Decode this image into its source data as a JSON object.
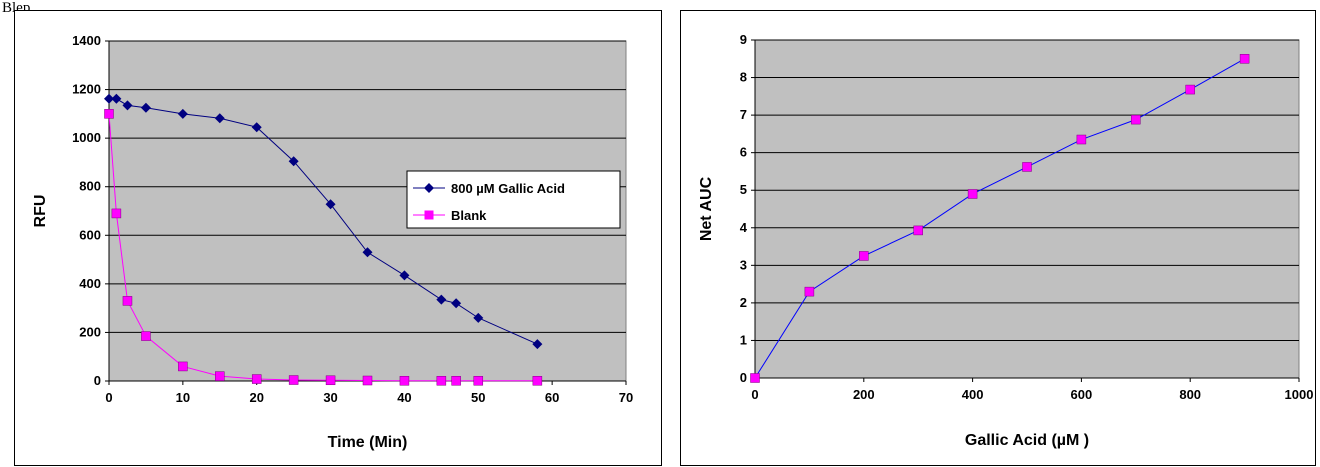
{
  "caption": "Blep",
  "chart_data": [
    {
      "type": "line",
      "title": "",
      "xlabel": "Time (Min)",
      "ylabel": "RFU",
      "xlim": [
        0,
        70
      ],
      "ylim": [
        0,
        1400
      ],
      "xticks": [
        0,
        10,
        20,
        30,
        40,
        50,
        60,
        70
      ],
      "yticks": [
        0,
        200,
        400,
        600,
        800,
        1000,
        1200,
        1400
      ],
      "grid": true,
      "legend": "right",
      "plot_background": "#c0c0c0",
      "series": [
        {
          "name": "800 µM Gallic Acid",
          "color": "#000080",
          "marker": "diamond",
          "x": [
            0,
            1,
            2.5,
            5,
            10,
            15,
            20,
            25,
            30,
            35,
            40,
            45,
            47,
            50,
            58
          ],
          "y": [
            1162,
            1162,
            1135,
            1125,
            1100,
            1082,
            1045,
            905,
            728,
            530,
            435,
            335,
            320,
            260,
            152
          ]
        },
        {
          "name": "Blank",
          "color": "#ff00ff",
          "marker": "square",
          "x": [
            0,
            1,
            2.5,
            5,
            10,
            15,
            20,
            25,
            30,
            35,
            40,
            45,
            47,
            50,
            58
          ],
          "y": [
            1100,
            690,
            330,
            185,
            60,
            20,
            8,
            4,
            3,
            2,
            1,
            1,
            1,
            1,
            1
          ]
        }
      ]
    },
    {
      "type": "line",
      "title": "",
      "xlabel": "Gallic Acid (µM )",
      "ylabel": "Net AUC",
      "xlim": [
        0,
        1000
      ],
      "ylim": [
        0,
        9
      ],
      "xticks": [
        0,
        200,
        400,
        600,
        800,
        1000
      ],
      "yticks": [
        0,
        1,
        2,
        3,
        4,
        5,
        6,
        7,
        8,
        9
      ],
      "grid": true,
      "legend": "none",
      "plot_background": "#c0c0c0",
      "series": [
        {
          "color": "#0000ff",
          "marker_color": "#ff00ff",
          "marker": "square",
          "x": [
            0,
            100,
            200,
            300,
            400,
            500,
            600,
            700,
            800,
            900
          ],
          "y": [
            0,
            2.3,
            3.25,
            3.93,
            4.9,
            5.62,
            6.35,
            6.88,
            7.68,
            8.5
          ]
        }
      ]
    }
  ]
}
